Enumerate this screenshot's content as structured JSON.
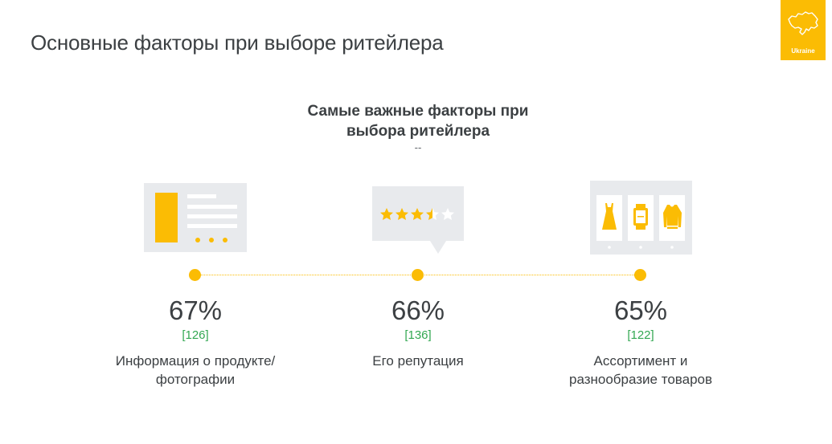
{
  "page": {
    "title": "Основные факторы при выборе ритейлера"
  },
  "badge": {
    "label": "Ukraine",
    "icon": "ukraine-map-icon",
    "color": "#fbbc04"
  },
  "section": {
    "heading": "Самые важные факторы при выбора ритейлера",
    "subheading": "--"
  },
  "accent_color": "#fbbc04",
  "base_color": "#34a853",
  "factors": [
    {
      "icon": "product-info-card-icon",
      "percent": "67%",
      "base": "[126]",
      "label": "Информация о продукте/ фотографии"
    },
    {
      "icon": "rating-stars-icon",
      "percent": "66%",
      "base": "[136]",
      "label": "Его репутация"
    },
    {
      "icon": "product-assortment-icon",
      "percent": "65%",
      "base": "[122]",
      "label": "Ассортимент и разнообразие товаров"
    }
  ]
}
